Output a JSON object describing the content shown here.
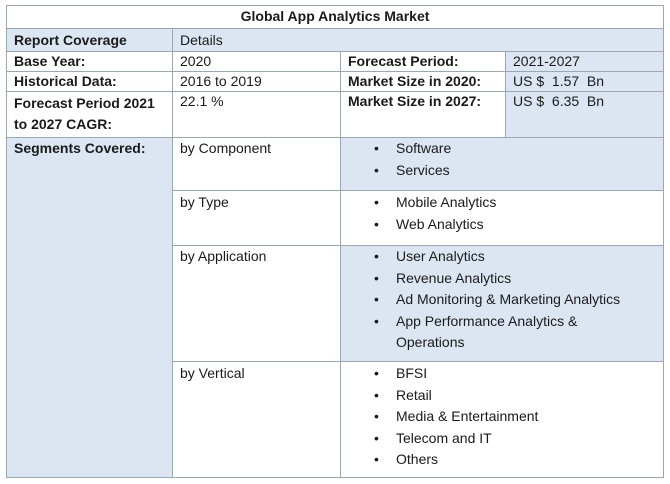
{
  "title": "Global App Analytics Market",
  "header": {
    "col1": "Report Coverage",
    "col2": "Details"
  },
  "rows": {
    "base_year_label": "Base Year:",
    "base_year_value": "2020",
    "forecast_period_label": "Forecast Period:",
    "forecast_period_value": "2021-2027",
    "historical_label": "Historical Data:",
    "historical_value": "2016 to 2019",
    "size2020_label": "Market Size in 2020:",
    "size2020_value": "US $  1.57  Bn",
    "cagr_label_line1": "Forecast Period 2021",
    "cagr_label_line2": "to 2027 CAGR:",
    "cagr_value": "22.1 %",
    "size2027_label": "Market Size in 2027:",
    "size2027_value": "US $  6.35  Bn"
  },
  "segments": {
    "label": "Segments Covered:",
    "groups": [
      {
        "name": "by Component",
        "items": [
          "Software",
          "Services"
        ]
      },
      {
        "name": "by Type",
        "items": [
          "Mobile Analytics",
          "Web Analytics"
        ]
      },
      {
        "name": "by Application",
        "items": [
          "User Analytics",
          "Revenue Analytics",
          "Ad Monitoring & Marketing Analytics",
          "App Performance Analytics &",
          "Operations"
        ]
      },
      {
        "name": "by Vertical",
        "items": [
          "BFSI",
          "Retail",
          "Media & Entertainment",
          "Telecom and IT",
          "Others"
        ]
      }
    ]
  },
  "colors": {
    "accent_fill": "#dce6f2",
    "border": "#9aa7b5"
  },
  "bullet_glyph": "•"
}
